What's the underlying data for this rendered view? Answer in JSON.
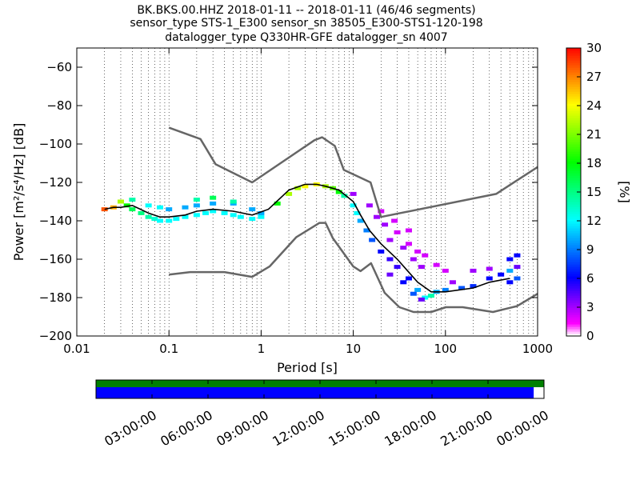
{
  "chart_data": {
    "type": "heatmap",
    "title_lines": [
      "BK.BKS.00.HHZ   2018-01-11 -- 2018-01-11  (46/46 segments)",
      "sensor_type STS-1_E300 sensor_sn 38505_E300-STS1-120-198",
      "datalogger_type Q330HR-GFE datalogger_sn 4007"
    ],
    "xlabel": "Period [s]",
    "ylabel": "Power [m²/s⁴/Hz] [dB]",
    "x_scale": "log",
    "xlim": [
      0.01,
      1000
    ],
    "ylim": [
      -200,
      -50
    ],
    "x_ticks": [
      0.01,
      0.1,
      1,
      10,
      100,
      1000
    ],
    "x_tick_labels": [
      "0.01",
      "0.1",
      "1",
      "10",
      "100",
      "1000"
    ],
    "y_ticks": [
      -200,
      -180,
      -160,
      -140,
      -120,
      -100,
      -80,
      -60
    ],
    "y_tick_labels": [
      "−200",
      "−180",
      "−160",
      "−140",
      "−120",
      "−100",
      "−80",
      "−60"
    ],
    "grid": true,
    "colorbar": {
      "label": "[%]",
      "range": [
        0,
        30
      ],
      "ticks": [
        "0",
        "3",
        "6",
        "9",
        "12",
        "15",
        "18",
        "21",
        "24",
        "27",
        "30"
      ]
    },
    "high_noise_model": {
      "period": [
        0.1,
        0.22,
        0.32,
        0.8,
        3.8,
        4.6,
        6.3,
        7.9,
        15.4,
        20,
        354.8,
        1000
      ],
      "db": [
        -91.5,
        -97.4,
        -110.5,
        -120,
        -98,
        -96.5,
        -101,
        -113.5,
        -120,
        -138,
        -126,
        -112
      ]
    },
    "low_noise_model": {
      "period": [
        0.1,
        0.17,
        0.4,
        0.8,
        1.24,
        2.4,
        4.3,
        5,
        6,
        10,
        12,
        15.6,
        21.9,
        31.6,
        45,
        70,
        101,
        154,
        328,
        600,
        1000
      ],
      "db": [
        -168,
        -166.7,
        -166.7,
        -169.2,
        -163.7,
        -148.6,
        -141.1,
        -141.1,
        -149,
        -163.8,
        -166.2,
        -162.1,
        -177.5,
        -185,
        -187.5,
        -187.5,
        -185,
        -185,
        -187.5,
        -184.4,
        -178
      ]
    },
    "mean_psd": {
      "period": [
        0.02,
        0.025,
        0.03,
        0.04,
        0.06,
        0.08,
        0.1,
        0.15,
        0.2,
        0.3,
        0.5,
        0.8,
        1.2,
        2,
        3,
        4,
        5,
        7,
        10,
        12,
        15,
        20,
        30,
        50,
        70,
        100,
        200,
        300,
        500
      ],
      "db": [
        -134,
        -133,
        -133,
        -132,
        -136,
        -138,
        -138,
        -137,
        -135,
        -134,
        -135,
        -137,
        -134,
        -124,
        -121,
        -121,
        -122,
        -124,
        -130,
        -137,
        -145,
        -152,
        -160,
        -172,
        -177,
        -177,
        -175,
        -172,
        -170
      ]
    },
    "heat_cells": [
      [
        0.02,
        -134,
        28
      ],
      [
        0.025,
        -133,
        26
      ],
      [
        0.03,
        -130,
        22
      ],
      [
        0.035,
        -132,
        18
      ],
      [
        0.04,
        -134,
        16
      ],
      [
        0.05,
        -136,
        15
      ],
      [
        0.06,
        -138,
        14
      ],
      [
        0.07,
        -139,
        13
      ],
      [
        0.08,
        -140,
        12
      ],
      [
        0.1,
        -140,
        12
      ],
      [
        0.12,
        -139,
        12
      ],
      [
        0.15,
        -138,
        12
      ],
      [
        0.2,
        -137,
        12
      ],
      [
        0.25,
        -136,
        12
      ],
      [
        0.3,
        -135,
        12
      ],
      [
        0.4,
        -136,
        12
      ],
      [
        0.5,
        -137,
        12
      ],
      [
        0.6,
        -138,
        12
      ],
      [
        0.8,
        -139,
        12
      ],
      [
        1,
        -138,
        12
      ],
      [
        0.04,
        -129,
        14
      ],
      [
        0.06,
        -132,
        12
      ],
      [
        0.08,
        -133,
        12
      ],
      [
        0.1,
        -134,
        10
      ],
      [
        0.15,
        -133,
        10
      ],
      [
        0.2,
        -132,
        10
      ],
      [
        0.3,
        -131,
        10
      ],
      [
        0.5,
        -131,
        10
      ],
      [
        0.8,
        -134,
        10
      ],
      [
        1,
        -136,
        10
      ],
      [
        0.2,
        -129,
        14
      ],
      [
        0.3,
        -128,
        16
      ],
      [
        0.5,
        -130,
        14
      ],
      [
        1.5,
        -131,
        18
      ],
      [
        2,
        -126,
        22
      ],
      [
        2.5,
        -123,
        22
      ],
      [
        3,
        -122,
        24
      ],
      [
        4,
        -121,
        24
      ],
      [
        5,
        -122,
        22
      ],
      [
        6,
        -123,
        20
      ],
      [
        7,
        -125,
        18
      ],
      [
        8,
        -127,
        14
      ],
      [
        10,
        -132,
        12
      ],
      [
        11,
        -136,
        12
      ],
      [
        12,
        -140,
        10
      ],
      [
        14,
        -145,
        9
      ],
      [
        16,
        -150,
        8
      ],
      [
        20,
        -156,
        6
      ],
      [
        25,
        -160,
        5
      ],
      [
        30,
        -164,
        5
      ],
      [
        40,
        -170,
        6
      ],
      [
        50,
        -176,
        10
      ],
      [
        60,
        -180,
        12
      ],
      [
        70,
        -179,
        14
      ],
      [
        80,
        -177,
        10
      ],
      [
        100,
        -176,
        9
      ],
      [
        150,
        -175,
        8
      ],
      [
        200,
        -174,
        7
      ],
      [
        300,
        -170,
        6
      ],
      [
        400,
        -168,
        6
      ],
      [
        500,
        -166,
        10
      ],
      [
        600,
        -164,
        4
      ],
      [
        10,
        -126,
        3
      ],
      [
        15,
        -132,
        3
      ],
      [
        18,
        -138,
        3
      ],
      [
        22,
        -142,
        3
      ],
      [
        30,
        -146,
        2
      ],
      [
        40,
        -152,
        2
      ],
      [
        50,
        -156,
        2
      ],
      [
        60,
        -158,
        2
      ],
      [
        80,
        -163,
        2
      ],
      [
        100,
        -166,
        2
      ],
      [
        25,
        -150,
        3
      ],
      [
        35,
        -154,
        3
      ],
      [
        45,
        -160,
        3
      ],
      [
        55,
        -164,
        3
      ],
      [
        20,
        -135,
        2
      ],
      [
        28,
        -140,
        2
      ],
      [
        40,
        -145,
        2
      ],
      [
        120,
        -172,
        3
      ],
      [
        200,
        -166,
        3
      ],
      [
        300,
        -165,
        3
      ],
      [
        500,
        -160,
        6
      ],
      [
        600,
        -158,
        6
      ],
      [
        500,
        -172,
        6
      ],
      [
        600,
        -170,
        8
      ],
      [
        25,
        -168,
        4
      ],
      [
        35,
        -172,
        6
      ],
      [
        45,
        -178,
        8
      ],
      [
        55,
        -181,
        4
      ]
    ],
    "time_axis": {
      "tick_labels": [
        "03:00:00",
        "06:00:00",
        "09:00:00",
        "12:00:00",
        "15:00:00",
        "18:00:00",
        "21:00:00",
        "00:00:00"
      ],
      "data_coverage_fraction": 0.977
    }
  }
}
